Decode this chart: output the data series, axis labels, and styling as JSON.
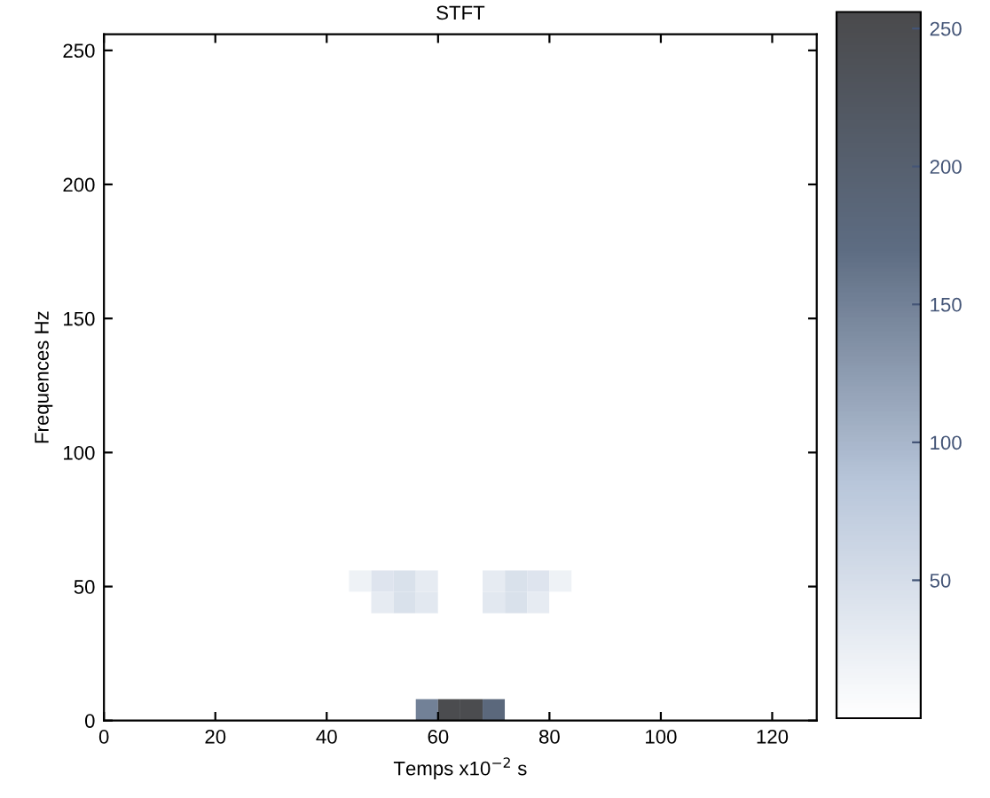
{
  "chart_data": {
    "type": "heatmap",
    "title": "STFT",
    "xlabel": "Temps x10$^{−2}$ s",
    "ylabel": "Frequences Hz",
    "x": [
      2,
      6,
      10,
      14,
      18,
      22,
      26,
      30,
      34,
      38,
      42,
      46,
      50,
      54,
      58,
      62,
      66,
      70,
      74,
      78,
      82,
      86,
      90,
      94,
      98,
      102,
      106,
      110,
      114,
      118,
      122,
      126
    ],
    "y": [
      252,
      244,
      236,
      228,
      220,
      212,
      204,
      196,
      188,
      180,
      172,
      164,
      156,
      148,
      140,
      132,
      124,
      116,
      108,
      100,
      92,
      84,
      76,
      68,
      60,
      52,
      44,
      36,
      28,
      20,
      12,
      4
    ],
    "xlim": [
      0,
      128
    ],
    "ylim": [
      0,
      256
    ],
    "xticks": [
      0,
      20,
      40,
      60,
      80,
      100,
      120
    ],
    "yticks": [
      0,
      50,
      100,
      150,
      200,
      250
    ],
    "clim": [
      0,
      256
    ],
    "cticks": [
      50,
      100,
      150,
      200,
      250
    ],
    "colors": [
      "#ffffff",
      "#b8c6da",
      "#5d6c82",
      "#4a4a4c"
    ],
    "cells": [
      [
        0,
        0,
        0,
        0,
        0,
        0,
        0,
        0,
        0,
        0,
        0,
        0,
        0,
        0,
        0,
        0,
        0,
        0,
        0,
        0,
        0,
        0,
        0,
        0,
        0,
        0,
        0,
        0,
        0,
        0,
        0,
        0
      ],
      [
        0,
        0,
        0,
        0,
        0,
        0,
        0,
        0,
        0,
        0,
        0,
        0,
        0,
        0,
        0,
        0,
        0,
        0,
        0,
        0,
        0,
        0,
        0,
        0,
        0,
        0,
        0,
        0,
        0,
        0,
        0,
        0
      ],
      [
        0,
        0,
        0,
        0,
        0,
        0,
        0,
        0,
        0,
        0,
        0,
        0,
        0,
        0,
        0,
        0,
        0,
        0,
        0,
        0,
        0,
        0,
        0,
        0,
        0,
        0,
        0,
        0,
        0,
        0,
        0,
        0
      ],
      [
        0,
        0,
        0,
        0,
        0,
        0,
        0,
        0,
        0,
        0,
        0,
        0,
        0,
        0,
        0,
        0,
        0,
        0,
        0,
        0,
        0,
        0,
        0,
        0,
        0,
        0,
        0,
        0,
        0,
        0,
        0,
        0
      ],
      [
        0,
        0,
        0,
        0,
        0,
        0,
        0,
        0,
        0,
        0,
        0,
        0,
        0,
        0,
        0,
        0,
        0,
        0,
        0,
        0,
        0,
        0,
        0,
        0,
        0,
        0,
        0,
        0,
        0,
        0,
        0,
        0
      ],
      [
        0,
        0,
        0,
        0,
        0,
        0,
        0,
        0,
        0,
        0,
        0,
        0,
        0,
        0,
        0,
        0,
        0,
        0,
        0,
        0,
        0,
        0,
        0,
        0,
        0,
        0,
        0,
        0,
        0,
        0,
        0,
        0
      ],
      [
        0,
        0,
        0,
        0,
        0,
        0,
        0,
        0,
        0,
        0,
        0,
        0,
        0,
        0,
        0,
        0,
        0,
        0,
        0,
        0,
        0,
        0,
        0,
        0,
        0,
        0,
        0,
        0,
        0,
        0,
        0,
        0
      ],
      [
        0,
        0,
        0,
        0,
        0,
        0,
        0,
        0,
        0,
        0,
        0,
        0,
        0,
        0,
        0,
        0,
        0,
        0,
        0,
        0,
        0,
        0,
        0,
        0,
        0,
        0,
        0,
        0,
        0,
        0,
        0,
        0
      ],
      [
        0,
        0,
        0,
        0,
        0,
        0,
        0,
        0,
        0,
        0,
        0,
        0,
        0,
        0,
        0,
        0,
        0,
        0,
        0,
        0,
        0,
        0,
        0,
        0,
        0,
        0,
        0,
        0,
        0,
        0,
        0,
        0
      ],
      [
        0,
        0,
        0,
        0,
        0,
        0,
        0,
        0,
        0,
        0,
        0,
        0,
        0,
        0,
        0,
        0,
        0,
        0,
        0,
        0,
        0,
        0,
        0,
        0,
        0,
        0,
        0,
        0,
        0,
        0,
        0,
        0
      ],
      [
        0,
        0,
        0,
        0,
        0,
        0,
        0,
        0,
        0,
        0,
        0,
        0,
        0,
        0,
        0,
        0,
        0,
        0,
        0,
        0,
        0,
        0,
        0,
        0,
        0,
        0,
        0,
        0,
        0,
        0,
        0,
        0
      ],
      [
        0,
        0,
        0,
        0,
        0,
        0,
        0,
        0,
        0,
        0,
        0,
        0,
        0,
        0,
        0,
        0,
        0,
        0,
        0,
        0,
        0,
        0,
        0,
        0,
        0,
        0,
        0,
        0,
        0,
        0,
        0,
        0
      ],
      [
        0,
        0,
        0,
        0,
        0,
        0,
        0,
        0,
        0,
        0,
        0,
        0,
        0,
        0,
        0,
        0,
        0,
        0,
        0,
        0,
        0,
        0,
        0,
        0,
        0,
        0,
        0,
        0,
        0,
        0,
        0,
        0
      ],
      [
        0,
        0,
        0,
        0,
        0,
        0,
        0,
        0,
        0,
        0,
        0,
        0,
        0,
        0,
        0,
        0,
        0,
        0,
        0,
        0,
        0,
        0,
        0,
        0,
        0,
        0,
        0,
        0,
        0,
        0,
        0,
        0
      ],
      [
        0,
        0,
        0,
        0,
        0,
        0,
        0,
        0,
        0,
        0,
        0,
        0,
        0,
        0,
        0,
        0,
        0,
        0,
        0,
        0,
        0,
        0,
        0,
        0,
        0,
        0,
        0,
        0,
        0,
        0,
        0,
        0
      ],
      [
        0,
        0,
        0,
        0,
        0,
        0,
        0,
        0,
        0,
        0,
        0,
        0,
        0,
        0,
        0,
        0,
        0,
        0,
        0,
        0,
        0,
        0,
        0,
        0,
        0,
        0,
        0,
        0,
        0,
        0,
        0,
        0
      ],
      [
        0,
        0,
        0,
        0,
        0,
        0,
        0,
        0,
        0,
        0,
        0,
        0,
        0,
        0,
        0,
        0,
        0,
        0,
        0,
        0,
        0,
        0,
        0,
        0,
        0,
        0,
        0,
        0,
        0,
        0,
        0,
        0
      ],
      [
        0,
        0,
        0,
        0,
        0,
        0,
        0,
        0,
        0,
        0,
        0,
        0,
        0,
        0,
        0,
        0,
        0,
        0,
        0,
        0,
        0,
        0,
        0,
        0,
        0,
        0,
        0,
        0,
        0,
        0,
        0,
        0
      ],
      [
        0,
        0,
        0,
        0,
        0,
        0,
        0,
        0,
        0,
        0,
        0,
        0,
        0,
        0,
        0,
        0,
        0,
        0,
        0,
        0,
        0,
        0,
        0,
        0,
        0,
        0,
        0,
        0,
        0,
        0,
        0,
        0
      ],
      [
        0,
        0,
        0,
        0,
        0,
        0,
        0,
        0,
        0,
        0,
        0,
        0,
        0,
        0,
        0,
        0,
        0,
        0,
        0,
        0,
        0,
        0,
        0,
        0,
        0,
        0,
        0,
        0,
        0,
        0,
        0,
        0
      ],
      [
        0,
        0,
        0,
        0,
        0,
        0,
        0,
        0,
        0,
        0,
        0,
        0,
        0,
        0,
        0,
        0,
        0,
        0,
        0,
        0,
        0,
        0,
        0,
        0,
        0,
        0,
        0,
        0,
        0,
        0,
        0,
        0
      ],
      [
        0,
        0,
        0,
        0,
        0,
        0,
        0,
        0,
        0,
        0,
        0,
        0,
        0,
        0,
        0,
        0,
        0,
        0,
        0,
        0,
        0,
        0,
        0,
        0,
        0,
        0,
        0,
        0,
        0,
        0,
        0,
        0
      ],
      [
        0,
        0,
        0,
        0,
        0,
        0,
        0,
        0,
        0,
        0,
        0,
        0,
        0,
        0,
        0,
        0,
        0,
        0,
        0,
        0,
        0,
        0,
        0,
        0,
        0,
        0,
        0,
        0,
        0,
        0,
        0,
        0
      ],
      [
        0,
        0,
        0,
        0,
        0,
        0,
        0,
        0,
        0,
        0,
        0,
        0,
        0,
        0,
        0,
        0,
        0,
        0,
        0,
        0,
        0,
        0,
        0,
        0,
        0,
        0,
        0,
        0,
        0,
        0,
        0,
        0
      ],
      [
        0,
        0,
        0,
        0,
        0,
        0,
        0,
        0,
        0,
        0,
        0,
        0,
        0,
        0,
        0,
        0,
        0,
        0,
        0,
        0,
        0,
        0,
        0,
        0,
        0,
        0,
        0,
        0,
        0,
        0,
        0,
        0
      ],
      [
        0,
        0,
        0,
        0,
        0,
        0,
        0,
        0,
        0,
        0,
        0,
        20,
        40,
        45,
        30,
        0,
        0,
        30,
        45,
        40,
        20,
        0,
        0,
        0,
        0,
        0,
        0,
        0,
        0,
        0,
        0,
        0
      ],
      [
        0,
        0,
        0,
        0,
        0,
        0,
        0,
        0,
        0,
        0,
        0,
        0,
        30,
        45,
        35,
        0,
        0,
        35,
        45,
        30,
        0,
        0,
        0,
        0,
        0,
        0,
        0,
        0,
        0,
        0,
        0,
        0
      ],
      [
        0,
        0,
        0,
        0,
        0,
        0,
        0,
        0,
        0,
        0,
        0,
        0,
        0,
        0,
        0,
        0,
        0,
        0,
        0,
        0,
        0,
        0,
        0,
        0,
        0,
        0,
        0,
        0,
        0,
        0,
        0,
        0
      ],
      [
        0,
        0,
        0,
        0,
        0,
        0,
        0,
        0,
        0,
        0,
        0,
        0,
        0,
        0,
        0,
        0,
        0,
        0,
        0,
        0,
        0,
        0,
        0,
        0,
        0,
        0,
        0,
        0,
        0,
        0,
        0,
        0
      ],
      [
        0,
        0,
        0,
        0,
        0,
        0,
        0,
        0,
        0,
        0,
        0,
        0,
        0,
        0,
        0,
        0,
        0,
        0,
        0,
        0,
        0,
        0,
        0,
        0,
        0,
        0,
        0,
        0,
        0,
        0,
        0,
        0
      ],
      [
        0,
        0,
        0,
        0,
        0,
        0,
        0,
        0,
        0,
        0,
        0,
        0,
        0,
        0,
        0,
        0,
        0,
        0,
        0,
        0,
        0,
        0,
        0,
        0,
        0,
        0,
        0,
        0,
        0,
        0,
        0,
        0
      ],
      [
        0,
        0,
        0,
        0,
        0,
        0,
        0,
        0,
        0,
        0,
        0,
        0,
        0,
        0,
        150,
        250,
        250,
        180,
        0,
        0,
        0,
        0,
        0,
        0,
        0,
        0,
        0,
        0,
        0,
        0,
        0,
        0
      ]
    ]
  }
}
